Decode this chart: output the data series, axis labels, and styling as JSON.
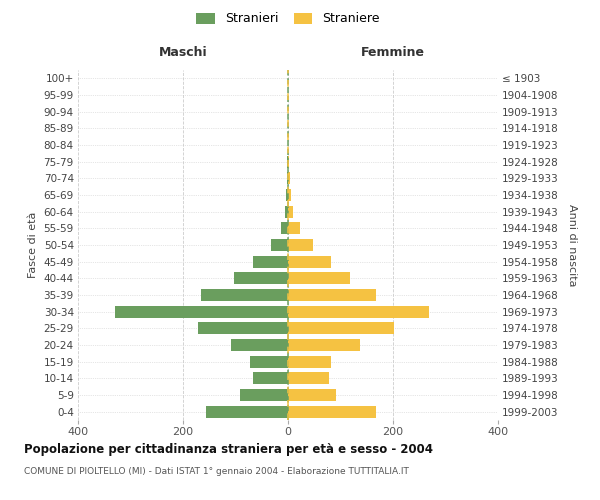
{
  "age_groups": [
    "100+",
    "95-99",
    "90-94",
    "85-89",
    "80-84",
    "75-79",
    "70-74",
    "65-69",
    "60-64",
    "55-59",
    "50-54",
    "45-49",
    "40-44",
    "35-39",
    "30-34",
    "25-29",
    "20-24",
    "15-19",
    "10-14",
    "5-9",
    "0-4"
  ],
  "birth_years": [
    "≤ 1903",
    "1904-1908",
    "1909-1913",
    "1914-1918",
    "1919-1923",
    "1924-1928",
    "1929-1933",
    "1934-1938",
    "1939-1943",
    "1944-1948",
    "1949-1953",
    "1954-1958",
    "1959-1963",
    "1964-1968",
    "1969-1973",
    "1974-1978",
    "1979-1983",
    "1984-1988",
    "1989-1993",
    "1994-1998",
    "1999-2003"
  ],
  "maschi": [
    0,
    0,
    0,
    0,
    0,
    1,
    2,
    4,
    6,
    14,
    32,
    67,
    102,
    165,
    330,
    172,
    108,
    72,
    67,
    92,
    157
  ],
  "femmine": [
    0,
    0,
    0,
    0,
    0,
    1,
    4,
    5,
    9,
    22,
    47,
    82,
    118,
    168,
    268,
    202,
    138,
    82,
    78,
    92,
    168
  ],
  "color_maschi": "#6a9e5e",
  "color_femmine": "#f5c242",
  "title": "Popolazione per cittadinanza straniera per età e sesso - 2004",
  "subtitle": "COMUNE DI PIOLTELLO (MI) - Dati ISTAT 1° gennaio 2004 - Elaborazione TUTTITALIA.IT",
  "header_left": "Maschi",
  "header_right": "Femmine",
  "ylabel_left": "Fasce di età",
  "ylabel_right": "Anni di nascita",
  "legend_maschi": "Stranieri",
  "legend_femmine": "Straniere",
  "xlim": 400,
  "xticks": [
    -400,
    -200,
    0,
    200,
    400
  ],
  "xticklabels": [
    "400",
    "200",
    "0",
    "200",
    "400"
  ],
  "background_color": "#ffffff",
  "grid_color": "#cccccc",
  "bar_height": 0.72
}
